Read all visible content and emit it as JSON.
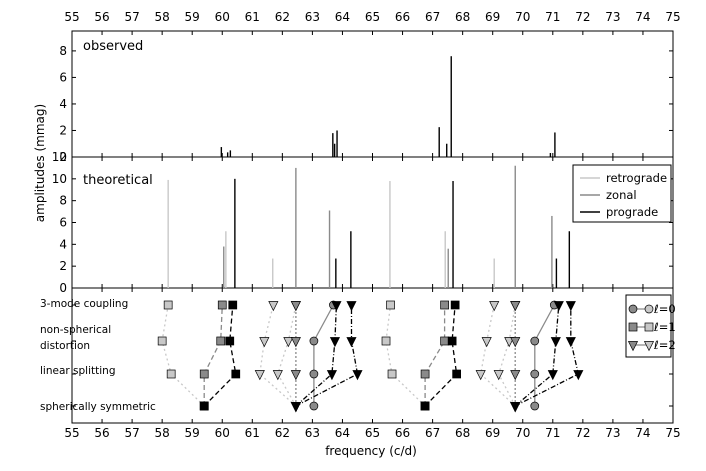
{
  "chart_data": {
    "type": "bar",
    "xlabel": "frequency (c/d)",
    "ylabel": "amplitudes (mmag)",
    "xlim": [
      55,
      75
    ],
    "x_ticks": [
      "55",
      "56",
      "57",
      "58",
      "59",
      "60",
      "61",
      "62",
      "63",
      "64",
      "65",
      "66",
      "67",
      "68",
      "69",
      "70",
      "71",
      "72",
      "73",
      "74",
      "75"
    ],
    "grid": false,
    "panels": [
      {
        "name": "observed",
        "label": "observed",
        "ylim": [
          0,
          9.5
        ],
        "y_ticks": [
          "0",
          "2",
          "4",
          "6",
          "8"
        ],
        "y_values": [
          0,
          2,
          4,
          6,
          8
        ],
        "peaks": [
          {
            "x": 59.97,
            "y": 0.75,
            "color": "#000000"
          },
          {
            "x": 60.18,
            "y": 0.35,
            "color": "#000000"
          },
          {
            "x": 60.27,
            "y": 0.5,
            "color": "#000000"
          },
          {
            "x": 63.68,
            "y": 1.8,
            "color": "#000000"
          },
          {
            "x": 63.74,
            "y": 1.0,
            "color": "#000000"
          },
          {
            "x": 63.82,
            "y": 2.0,
            "color": "#000000"
          },
          {
            "x": 67.22,
            "y": 2.25,
            "color": "#000000"
          },
          {
            "x": 67.47,
            "y": 1.0,
            "color": "#000000"
          },
          {
            "x": 67.62,
            "y": 7.6,
            "color": "#000000"
          },
          {
            "x": 70.92,
            "y": 0.3,
            "color": "#000000"
          },
          {
            "x": 71.07,
            "y": 1.85,
            "color": "#000000"
          }
        ]
      },
      {
        "name": "theoretical",
        "label": "theoretical",
        "ylim": [
          0,
          12
        ],
        "y_ticks": [
          "0",
          "2",
          "4",
          "6",
          "8",
          "10",
          "12"
        ],
        "y_values": [
          0,
          2,
          4,
          6,
          8,
          10,
          12
        ],
        "legend_position": "top-right",
        "legend": [
          {
            "label": "retrograde",
            "color": "#c8c8c8"
          },
          {
            "label": "zonal",
            "color": "#8a8a8a"
          },
          {
            "label": "prograde",
            "color": "#000000"
          }
        ],
        "peaks": [
          {
            "x": 58.2,
            "y": 9.9,
            "color": "#c8c8c8"
          },
          {
            "x": 60.05,
            "y": 3.8,
            "color": "#8a8a8a"
          },
          {
            "x": 60.12,
            "y": 5.2,
            "color": "#c8c8c8"
          },
          {
            "x": 60.42,
            "y": 10.0,
            "color": "#000000"
          },
          {
            "x": 61.68,
            "y": 2.7,
            "color": "#c8c8c8"
          },
          {
            "x": 62.45,
            "y": 11.0,
            "color": "#8a8a8a"
          },
          {
            "x": 63.57,
            "y": 7.1,
            "color": "#8a8a8a"
          },
          {
            "x": 63.78,
            "y": 2.7,
            "color": "#000000"
          },
          {
            "x": 64.28,
            "y": 5.2,
            "color": "#000000"
          },
          {
            "x": 65.58,
            "y": 9.8,
            "color": "#c8c8c8"
          },
          {
            "x": 67.42,
            "y": 5.2,
            "color": "#c8c8c8"
          },
          {
            "x": 67.52,
            "y": 3.6,
            "color": "#8a8a8a"
          },
          {
            "x": 67.68,
            "y": 9.8,
            "color": "#000000"
          },
          {
            "x": 69.05,
            "y": 2.7,
            "color": "#c8c8c8"
          },
          {
            "x": 69.75,
            "y": 11.2,
            "color": "#8a8a8a"
          },
          {
            "x": 70.97,
            "y": 6.6,
            "color": "#8a8a8a"
          },
          {
            "x": 71.12,
            "y": 2.7,
            "color": "#000000"
          },
          {
            "x": 71.55,
            "y": 5.2,
            "color": "#000000"
          }
        ]
      }
    ],
    "model_panel": {
      "levels": [
        "3-mode coupling",
        "non-spherical distortion",
        "linear splitting",
        "spherically symmetric"
      ],
      "level_labels": [
        "3-mode coupling",
        "non-spherical",
        "distortion",
        "linear splitting",
        "spherically symmetric"
      ],
      "legend_position": "top-right",
      "legend": [
        {
          "label": "ℓ=0",
          "marker": "circle",
          "color": "#8a8a8a"
        },
        {
          "label": "ℓ=1",
          "marker": "square",
          "color": "#8a8a8a"
        },
        {
          "label": "ℓ=2",
          "marker": "triangle",
          "color": "#8a8a8a"
        }
      ],
      "series": [
        {
          "name": "ℓ=0",
          "marker": "circle",
          "color": "#8a8a8a",
          "dash": "solid",
          "points": [
            [
              63.05,
              3
            ],
            [
              63.05,
              2
            ],
            [
              63.05,
              1
            ],
            [
              63.7,
              0
            ]
          ]
        },
        {
          "name": "ℓ=0",
          "marker": "circle",
          "color": "#8a8a8a",
          "dash": "solid",
          "points": [
            [
              70.4,
              3
            ],
            [
              70.4,
              2
            ],
            [
              70.4,
              1
            ],
            [
              71.05,
              0
            ]
          ]
        },
        {
          "name": "ℓ=1",
          "marker": "square",
          "color": "#c8c8c8",
          "dash": "2,3",
          "points": [
            [
              59.4,
              3
            ],
            [
              58.3,
              2
            ],
            [
              58.0,
              1
            ],
            [
              58.2,
              0
            ]
          ]
        },
        {
          "name": "ℓ=1",
          "marker": "square",
          "color": "#8a8a8a",
          "dash": "5,3",
          "points": [
            [
              59.4,
              3
            ],
            [
              59.4,
              2
            ],
            [
              59.95,
              1
            ],
            [
              60.0,
              0
            ]
          ]
        },
        {
          "name": "ℓ=1",
          "marker": "square",
          "color": "#000000",
          "dash": "5,3",
          "points": [
            [
              59.4,
              3
            ],
            [
              60.45,
              2
            ],
            [
              60.25,
              1
            ],
            [
              60.35,
              0
            ]
          ]
        },
        {
          "name": "ℓ=1",
          "marker": "square",
          "color": "#c8c8c8",
          "dash": "2,3",
          "points": [
            [
              66.75,
              3
            ],
            [
              65.65,
              2
            ],
            [
              65.45,
              1
            ],
            [
              65.6,
              0
            ]
          ]
        },
        {
          "name": "ℓ=1",
          "marker": "square",
          "color": "#8a8a8a",
          "dash": "5,3",
          "points": [
            [
              66.75,
              3
            ],
            [
              66.75,
              2
            ],
            [
              67.4,
              1
            ],
            [
              67.4,
              0
            ]
          ]
        },
        {
          "name": "ℓ=1",
          "marker": "square",
          "color": "#000000",
          "dash": "5,3",
          "points": [
            [
              66.75,
              3
            ],
            [
              67.8,
              2
            ],
            [
              67.65,
              1
            ],
            [
              67.75,
              0
            ]
          ]
        },
        {
          "name": "ℓ=2",
          "marker": "triangle",
          "color": "#c8c8c8",
          "dash": "2,3",
          "points": [
            [
              62.45,
              3
            ],
            [
              61.25,
              2
            ],
            [
              61.4,
              1
            ],
            [
              61.7,
              0
            ]
          ]
        },
        {
          "name": "ℓ=2",
          "marker": "triangle",
          "color": "#c8c8c8",
          "dash": "2,3",
          "points": [
            [
              62.45,
              3
            ],
            [
              61.85,
              2
            ],
            [
              62.2,
              1
            ],
            [
              62.45,
              0
            ]
          ]
        },
        {
          "name": "ℓ=2",
          "marker": "triangle",
          "color": "#8a8a8a",
          "dash": "2,2",
          "points": [
            [
              62.45,
              3
            ],
            [
              62.45,
              2
            ],
            [
              62.45,
              1
            ],
            [
              62.45,
              0
            ]
          ]
        },
        {
          "name": "ℓ=2",
          "marker": "triangle",
          "color": "#000000",
          "dash": "5,2,1,2",
          "points": [
            [
              62.45,
              3
            ],
            [
              63.65,
              2
            ],
            [
              63.75,
              1
            ],
            [
              63.8,
              0
            ]
          ]
        },
        {
          "name": "ℓ=2",
          "marker": "triangle",
          "color": "#000000",
          "dash": "5,2,1,2",
          "points": [
            [
              62.45,
              3
            ],
            [
              64.5,
              2
            ],
            [
              64.3,
              1
            ],
            [
              64.3,
              0
            ]
          ]
        },
        {
          "name": "ℓ=2",
          "marker": "triangle",
          "color": "#c8c8c8",
          "dash": "2,3",
          "points": [
            [
              69.75,
              3
            ],
            [
              68.6,
              2
            ],
            [
              68.8,
              1
            ],
            [
              69.05,
              0
            ]
          ]
        },
        {
          "name": "ℓ=2",
          "marker": "triangle",
          "color": "#c8c8c8",
          "dash": "2,3",
          "points": [
            [
              69.75,
              3
            ],
            [
              69.2,
              2
            ],
            [
              69.55,
              1
            ],
            [
              69.75,
              0
            ]
          ]
        },
        {
          "name": "ℓ=2",
          "marker": "triangle",
          "color": "#8a8a8a",
          "dash": "2,2",
          "points": [
            [
              69.75,
              3
            ],
            [
              69.75,
              2
            ],
            [
              69.75,
              1
            ],
            [
              69.75,
              0
            ]
          ]
        },
        {
          "name": "ℓ=2",
          "marker": "triangle",
          "color": "#000000",
          "dash": "5,2,1,2",
          "points": [
            [
              69.75,
              3
            ],
            [
              71.0,
              2
            ],
            [
              71.1,
              1
            ],
            [
              71.2,
              0
            ]
          ]
        },
        {
          "name": "ℓ=2",
          "marker": "triangle",
          "color": "#000000",
          "dash": "5,2,1,2",
          "points": [
            [
              69.75,
              3
            ],
            [
              71.85,
              2
            ],
            [
              71.6,
              1
            ],
            [
              71.6,
              0
            ]
          ]
        }
      ]
    }
  }
}
